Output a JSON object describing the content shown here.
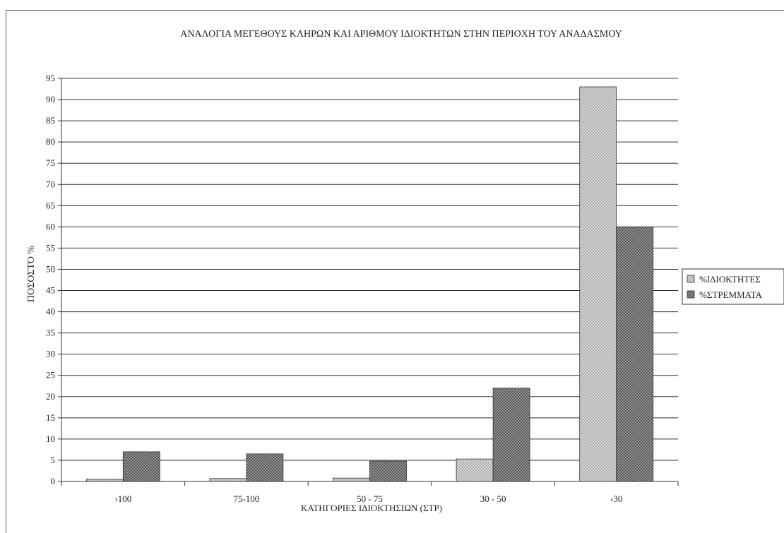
{
  "chart_data": {
    "type": "bar",
    "title": "ΑΝΑΛΟΓΙΑ ΜΕΓΕΘΟΥΣ ΚΛΗΡΩΝ ΚΑΙ ΑΡΙΘΜΟΥ ΙΔΙΟΚΤΗΤΩΝ ΣΤΗΝ ΠΕΡΙΟΧΗ ΤΟΥ ΑΝΑΔΑΣΜΟΥ",
    "xlabel": "ΚΑΤΗΓΟΡΙΕΣ ΙΔΙΟΚΤΗΣΙΩΝ (ΣΤΡ)",
    "ylabel": "ΠΟΣΟΣΤΟ %",
    "categories": [
      "›100",
      "75-100",
      "50 - 75",
      "30 - 50",
      "‹30"
    ],
    "series": [
      {
        "name": "%ΙΔΙΟΚΤΗΤΕΣ",
        "values": [
          0.5,
          0.7,
          0.8,
          5.3,
          93
        ],
        "color": "#d4d4d4",
        "pattern": "light-crosshatch"
      },
      {
        "name": "%ΣΤΡΕΜΜΑΤΑ",
        "values": [
          7,
          6.5,
          4.8,
          22,
          60
        ],
        "color": "#8a8a8a",
        "pattern": "dark-crosshatch"
      }
    ],
    "ylim": [
      0,
      95
    ],
    "yticks": [
      0,
      5,
      10,
      15,
      20,
      25,
      30,
      35,
      40,
      45,
      50,
      55,
      60,
      65,
      70,
      75,
      80,
      85,
      90,
      95
    ],
    "grid": true,
    "legend": "right"
  }
}
